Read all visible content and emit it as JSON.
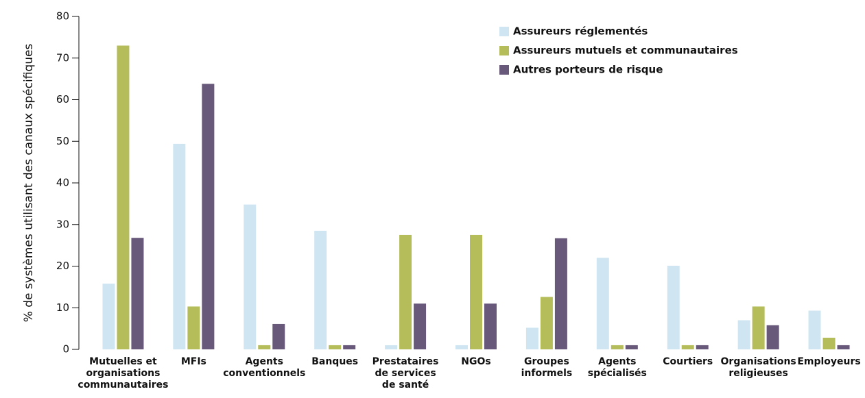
{
  "chart_data": {
    "type": "bar",
    "ylabel": "% de systèmes utilisant des canaux spécifiques",
    "categories": [
      "Mutuelles et\norganisations\ncommunautaires",
      "MFIs",
      "Agents\nconventionnels",
      "Banques",
      "Prestataires\nde services\nde santé",
      "NGOs",
      "Groupes\ninformels",
      "Agents\nspécialisés",
      "Courtiers",
      "Organisations\nreligieuses",
      "Employeurs"
    ],
    "series": [
      {
        "name": "Assureurs réglementés",
        "color": "#cfe6f2",
        "values": [
          15.8,
          49.4,
          34.8,
          28.5,
          1,
          1,
          5.2,
          22,
          20.1,
          7,
          9.3
        ]
      },
      {
        "name": "Assureurs mutuels et communautaires",
        "color": "#b5bd5a",
        "values": [
          73,
          10.3,
          1,
          1,
          27.5,
          27.5,
          12.6,
          1,
          1,
          10.3,
          2.8
        ]
      },
      {
        "name": "Autres porteurs de risque",
        "color": "#68587a",
        "values": [
          26.8,
          63.8,
          6.1,
          1,
          11,
          11,
          26.7,
          1,
          1,
          5.8,
          1
        ]
      }
    ],
    "ylim": [
      0,
      80
    ],
    "yticks": [
      0,
      10,
      20,
      30,
      40,
      50,
      60,
      70,
      80
    ],
    "grid": false,
    "legend": "top-right"
  }
}
